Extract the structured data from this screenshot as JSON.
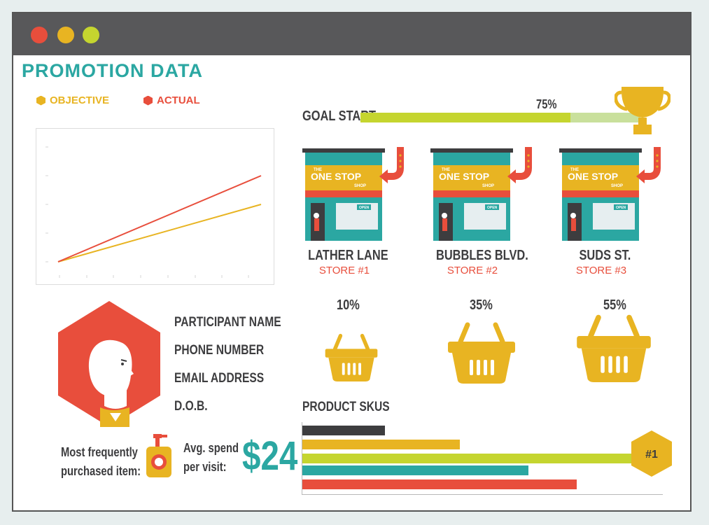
{
  "window": {
    "dots": [
      "#e84e3c",
      "#e8b422",
      "#c5d52f"
    ]
  },
  "title": "PROMOTION DATA",
  "legend": {
    "objective": "OBJECTIVE",
    "actual": "ACTUAL",
    "objective_color": "#e8b422",
    "actual_color": "#e84e3c"
  },
  "chart_data": {
    "type": "line",
    "series": [
      {
        "name": "OBJECTIVE",
        "color": "#e8b422",
        "start": 0,
        "end": 0.5
      },
      {
        "name": "ACTUAL",
        "color": "#e84e3c",
        "start": 0,
        "end": 0.75
      }
    ]
  },
  "goal": {
    "label": "GOAL START",
    "percent": "75%",
    "fill": 0.75
  },
  "stores": [
    {
      "sign_top": "THE",
      "sign_main": "ONE STOP",
      "sign_bottom": "SHOP",
      "open": "OPEN",
      "name": "LATHER LANE",
      "number": "STORE #1",
      "percent": "10%"
    },
    {
      "sign_top": "THE",
      "sign_main": "ONE STOP",
      "sign_bottom": "SHOP",
      "open": "OPEN",
      "name": "BUBBLES BLVD.",
      "number": "STORE #2",
      "percent": "35%"
    },
    {
      "sign_top": "THE",
      "sign_main": "ONE STOP",
      "sign_bottom": "SHOP",
      "open": "OPEN",
      "name": "SUDS ST.",
      "number": "STORE #3",
      "percent": "55%"
    }
  ],
  "participant": {
    "fields": [
      "PARTICIPANT NAME",
      "PHONE NUMBER",
      "EMAIL ADDRESS",
      "D.O.B."
    ]
  },
  "frequent": {
    "line1": "Most frequently",
    "line2": "purchased item:"
  },
  "spend": {
    "line1": "Avg. spend",
    "line2": "per visit:",
    "amount": "$24"
  },
  "skus": {
    "title": "PRODUCT SKUS",
    "badge": "#1",
    "bars": [
      {
        "value": 0.24,
        "color": "#3d3d3f"
      },
      {
        "value": 0.46,
        "color": "#e8b422"
      },
      {
        "value": 0.97,
        "color": "#c5d52f"
      },
      {
        "value": 0.66,
        "color": "#2ba7a2"
      },
      {
        "value": 0.8,
        "color": "#e84e3c"
      }
    ]
  }
}
